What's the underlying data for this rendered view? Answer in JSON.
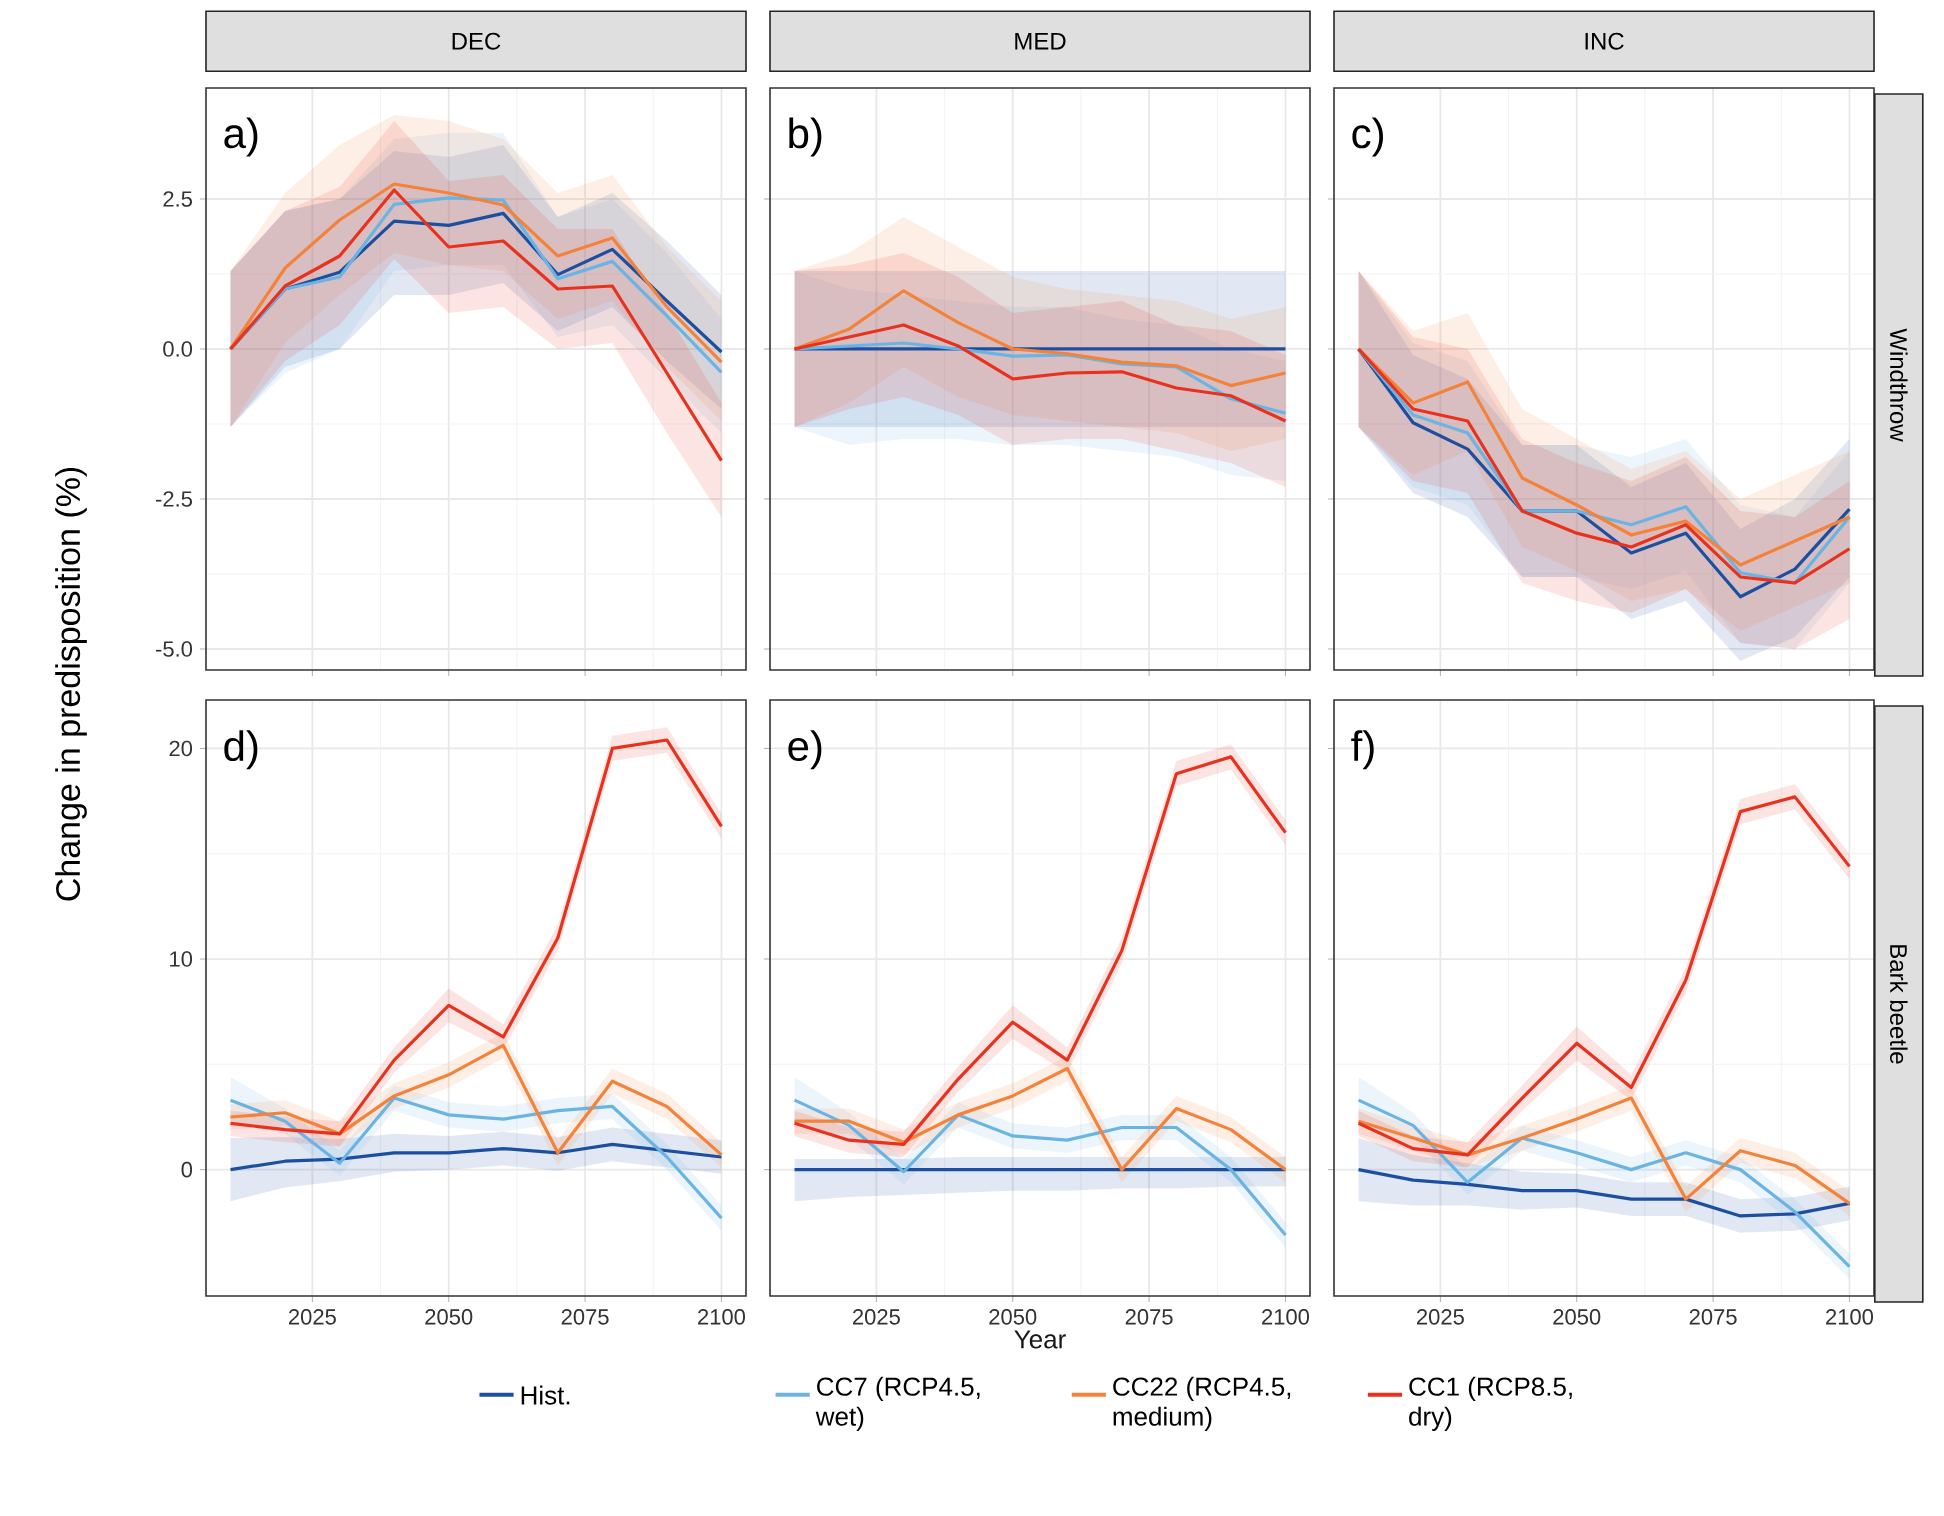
{
  "chart_data": [
    {
      "type": "line",
      "title": "DEC",
      "ylabel": "Change in predisposition (%)",
      "annotations": [
        "a)"
      ],
      "x": [
        2010,
        2020,
        2030,
        2040,
        2050,
        2060,
        2070,
        2080,
        2090,
        2100
      ],
      "xlim": [
        2005.5,
        2104.5
      ],
      "xticks": [
        2025,
        2050,
        2075,
        2100
      ],
      "ylim": [
        -5.35,
        4.35
      ],
      "yticks": [
        {
          "value": -5,
          "label": "-5.0"
        },
        {
          "value": -2.5,
          "label": "-2.5"
        },
        {
          "value": 0,
          "label": "0.0"
        },
        {
          "value": 2.5,
          "label": "2.5"
        }
      ],
      "tick_labels": "y",
      "grid": true,
      "legend": "bottom",
      "series": [
        {
          "name": "Hist.",
          "color": "#1c4fa0",
          "values": [
            0,
            1.0,
            1.28,
            2.13,
            2.06,
            2.26,
            1.24,
            1.66,
            0.8,
            -0.05
          ],
          "lower": [
            -1.3,
            -0.3,
            0.0,
            0.9,
            0.9,
            1.1,
            0.3,
            0.7,
            -0.2,
            -1.0
          ],
          "upper": [
            1.3,
            2.3,
            2.5,
            3.3,
            3.2,
            3.4,
            2.2,
            2.6,
            1.8,
            0.9
          ]
        },
        {
          "name": "CC7 (RCP4.5, wet)",
          "color": "#6ab4e4",
          "values": [
            0,
            1.0,
            1.2,
            2.41,
            2.52,
            2.48,
            1.17,
            1.46,
            0.55,
            -0.39
          ],
          "lower": [
            -1.3,
            -0.4,
            0.0,
            1.3,
            1.4,
            1.4,
            0.2,
            0.4,
            -0.5,
            -1.4
          ],
          "upper": [
            1.3,
            2.3,
            2.5,
            3.5,
            3.6,
            3.6,
            2.2,
            2.5,
            1.6,
            0.5
          ]
        },
        {
          "name": "CC22 (RCP4.5, medium)",
          "color": "#f4823a",
          "values": [
            0,
            1.35,
            2.15,
            2.75,
            2.6,
            2.4,
            1.55,
            1.85,
            0.7,
            -0.22
          ],
          "lower": [
            -1.3,
            0.1,
            0.9,
            1.6,
            1.4,
            1.3,
            0.5,
            0.8,
            -0.3,
            -1.2
          ],
          "upper": [
            1.3,
            2.6,
            3.4,
            3.9,
            3.8,
            3.5,
            2.6,
            2.9,
            1.7,
            0.8
          ]
        },
        {
          "name": "CC1 (RCP8.5, dry)",
          "color": "#e8321e",
          "values": [
            0,
            1.05,
            1.55,
            2.65,
            1.7,
            1.8,
            1.0,
            1.05,
            -0.4,
            -1.86
          ],
          "lower": [
            -1.3,
            -0.2,
            0.4,
            1.5,
            0.6,
            0.7,
            0.0,
            0.1,
            -1.4,
            -2.8
          ],
          "upper": [
            1.3,
            2.3,
            2.7,
            3.8,
            2.8,
            2.9,
            2.0,
            2.0,
            0.6,
            -0.9
          ]
        }
      ]
    },
    {
      "type": "line",
      "title": "MED",
      "annotations": [
        "b)"
      ],
      "x": [
        2010,
        2020,
        2030,
        2040,
        2050,
        2060,
        2070,
        2080,
        2090,
        2100
      ],
      "xlim": [
        2005.5,
        2104.5
      ],
      "xticks": [
        2025,
        2050,
        2075,
        2100
      ],
      "ylim": [
        -5.35,
        4.35
      ],
      "yticks": [
        -5,
        -2.5,
        0,
        2.5
      ],
      "tick_labels": false,
      "grid": true,
      "series": [
        {
          "color": "#1c4fa0",
          "values": [
            0,
            0,
            0,
            0,
            0,
            0,
            0,
            0,
            0,
            0
          ],
          "lower": [
            -1.3,
            -1.3,
            -1.3,
            -1.3,
            -1.3,
            -1.3,
            -1.3,
            -1.3,
            -1.3,
            -1.3
          ],
          "upper": [
            1.3,
            1.3,
            1.3,
            1.3,
            1.3,
            1.3,
            1.3,
            1.3,
            1.3,
            1.3
          ]
        },
        {
          "color": "#6ab4e4",
          "values": [
            0,
            0.05,
            0.1,
            0.0,
            -0.12,
            -0.1,
            -0.25,
            -0.3,
            -0.83,
            -1.07
          ],
          "lower": [
            -1.3,
            -1.6,
            -1.5,
            -1.5,
            -1.6,
            -1.6,
            -1.7,
            -1.8,
            -2.1,
            -2.2
          ],
          "upper": [
            1.3,
            1.0,
            0.9,
            0.8,
            0.7,
            0.7,
            0.5,
            0.4,
            0.0,
            -0.2
          ]
        },
        {
          "color": "#f4823a",
          "values": [
            0,
            0.33,
            0.97,
            0.44,
            0,
            -0.08,
            -0.22,
            -0.28,
            -0.61,
            -0.4
          ],
          "lower": [
            -1.3,
            -0.9,
            -0.3,
            -0.8,
            -1.1,
            -1.2,
            -1.3,
            -1.4,
            -1.7,
            -1.5
          ],
          "upper": [
            1.3,
            1.6,
            2.2,
            1.7,
            1.2,
            1.0,
            0.9,
            0.8,
            0.5,
            0.7
          ]
        },
        {
          "color": "#e8321e",
          "values": [
            0,
            0.2,
            0.4,
            0.05,
            -0.5,
            -0.4,
            -0.38,
            -0.65,
            -0.78,
            -1.2
          ],
          "lower": [
            -1.3,
            -1.0,
            -0.8,
            -1.1,
            -1.6,
            -1.5,
            -1.5,
            -1.7,
            -1.9,
            -2.3
          ],
          "upper": [
            1.3,
            1.4,
            1.6,
            1.2,
            0.6,
            0.7,
            0.8,
            0.4,
            0.3,
            -0.1
          ]
        }
      ]
    },
    {
      "type": "line",
      "title": "INC",
      "y2label": "Windthrow",
      "annotations": [
        "c)"
      ],
      "x": [
        2010,
        2020,
        2030,
        2040,
        2050,
        2060,
        2070,
        2080,
        2090,
        2100
      ],
      "xlim": [
        2005.5,
        2104.5
      ],
      "xticks": [
        2025,
        2050,
        2075,
        2100
      ],
      "ylim": [
        -5.35,
        4.35
      ],
      "yticks": [
        -5,
        -2.5,
        0,
        2.5
      ],
      "tick_labels": false,
      "grid": true,
      "series": [
        {
          "color": "#1c4fa0",
          "values": [
            0,
            -1.23,
            -1.67,
            -2.7,
            -2.7,
            -3.4,
            -3.07,
            -4.13,
            -3.67,
            -2.67
          ],
          "lower": [
            -1.3,
            -2.4,
            -2.8,
            -3.8,
            -3.8,
            -4.5,
            -4.2,
            -5.2,
            -4.8,
            -3.8
          ],
          "upper": [
            1.3,
            -0.1,
            -0.5,
            -1.6,
            -1.6,
            -2.3,
            -1.9,
            -3.0,
            -2.5,
            -1.5
          ]
        },
        {
          "color": "#6ab4e4",
          "values": [
            0,
            -1.1,
            -1.4,
            -2.7,
            -2.7,
            -2.93,
            -2.63,
            -3.73,
            -3.9,
            -2.8
          ],
          "lower": [
            -1.3,
            -2.3,
            -2.6,
            -3.8,
            -3.8,
            -4.0,
            -3.7,
            -4.9,
            -5.0,
            -3.9
          ],
          "upper": [
            1.3,
            0.1,
            -0.2,
            -1.6,
            -1.6,
            -1.8,
            -1.5,
            -2.6,
            -2.8,
            -1.7
          ]
        },
        {
          "color": "#f4823a",
          "values": [
            0,
            -0.9,
            -0.55,
            -2.15,
            -2.6,
            -3.1,
            -2.87,
            -3.6,
            -3.2,
            -2.8
          ],
          "lower": [
            -1.3,
            -2.1,
            -1.7,
            -3.3,
            -3.7,
            -4.2,
            -4.0,
            -4.7,
            -4.3,
            -3.9
          ],
          "upper": [
            1.3,
            0.3,
            0.6,
            -1.0,
            -1.5,
            -2.0,
            -1.7,
            -2.5,
            -2.1,
            -1.7
          ]
        },
        {
          "color": "#e8321e",
          "values": [
            0,
            -1.0,
            -1.2,
            -2.7,
            -3.07,
            -3.3,
            -2.93,
            -3.8,
            -3.9,
            -3.33
          ],
          "lower": [
            -1.3,
            -2.2,
            -2.4,
            -3.9,
            -4.2,
            -4.4,
            -4.0,
            -4.9,
            -5.0,
            -4.5
          ],
          "upper": [
            1.3,
            0.2,
            0.0,
            -1.5,
            -1.9,
            -2.2,
            -1.8,
            -2.7,
            -2.8,
            -2.2
          ]
        }
      ]
    },
    {
      "type": "line",
      "annotations": [
        "d)"
      ],
      "x": [
        2010,
        2020,
        2030,
        2040,
        2050,
        2060,
        2070,
        2080,
        2090,
        2100
      ],
      "xlim": [
        2005.5,
        2104.5
      ],
      "xticks": [
        2025,
        2050,
        2075,
        2100
      ],
      "ylim": [
        -6,
        22.3
      ],
      "yticks": [
        0,
        10,
        20
      ],
      "grid": true,
      "series": [
        {
          "color": "#1c4fa0",
          "values": [
            0,
            0.4,
            0.5,
            0.8,
            0.8,
            1.0,
            0.8,
            1.2,
            0.9,
            0.6
          ],
          "lower": [
            -1.5,
            -0.85,
            -0.55,
            -0.1,
            0.0,
            0.2,
            -0.05,
            0.4,
            0.1,
            -0.2
          ],
          "upper": [
            1.5,
            1.55,
            1.45,
            1.7,
            1.6,
            1.8,
            1.55,
            2.0,
            1.7,
            1.4
          ]
        },
        {
          "color": "#6ab4e4",
          "values": [
            3.3,
            2.3,
            0.3,
            3.4,
            2.6,
            2.4,
            2.8,
            3.0,
            0.6,
            -2.3
          ],
          "lower": [
            2.2,
            1.7,
            -0.3,
            2.8,
            2.0,
            1.8,
            2.2,
            2.4,
            0.0,
            -2.9
          ],
          "upper": [
            4.4,
            2.9,
            0.9,
            4.0,
            3.2,
            3.0,
            3.4,
            3.6,
            1.2,
            -1.7
          ]
        },
        {
          "color": "#f4823a",
          "values": [
            2.5,
            2.7,
            1.7,
            3.5,
            4.5,
            5.9,
            0.8,
            4.2,
            3.0,
            0.7
          ],
          "lower": [
            1.9,
            2.1,
            1.1,
            2.9,
            3.9,
            5.3,
            0.2,
            3.6,
            2.4,
            0.1
          ],
          "upper": [
            3.1,
            3.3,
            2.3,
            4.1,
            5.1,
            6.5,
            1.4,
            4.8,
            3.6,
            1.3
          ]
        },
        {
          "color": "#e8321e",
          "values": [
            2.2,
            1.9,
            1.7,
            5.2,
            7.8,
            6.3,
            11.0,
            20.0,
            20.4,
            16.3
          ],
          "lower": [
            1.6,
            1.3,
            1.1,
            4.6,
            7.0,
            5.7,
            10.4,
            19.4,
            19.8,
            15.7
          ],
          "upper": [
            2.8,
            2.5,
            2.3,
            5.8,
            8.6,
            6.9,
            11.6,
            20.6,
            21.0,
            16.9
          ]
        }
      ]
    },
    {
      "type": "line",
      "xlabel": "Year",
      "annotations": [
        "e)"
      ],
      "x": [
        2010,
        2020,
        2030,
        2040,
        2050,
        2060,
        2070,
        2080,
        2090,
        2100
      ],
      "xlim": [
        2005.5,
        2104.5
      ],
      "xticks": [
        2025,
        2050,
        2075,
        2100
      ],
      "ylim": [
        -6,
        22.3
      ],
      "yticks": [
        0,
        10,
        20
      ],
      "tick_labels": "x",
      "grid": true,
      "series": [
        {
          "color": "#1c4fa0",
          "values": [
            0,
            0,
            0,
            0,
            0,
            0,
            0,
            0,
            0,
            0
          ],
          "lower": [
            -1.5,
            -1.3,
            -1.2,
            -1.1,
            -1.0,
            -1.0,
            -0.9,
            -0.9,
            -0.8,
            -0.8
          ],
          "upper": [
            0.5,
            0.5,
            0.5,
            0.6,
            0.6,
            0.6,
            0.6,
            0.6,
            0.6,
            0.6
          ]
        },
        {
          "color": "#6ab4e4",
          "values": [
            3.3,
            2.1,
            -0.1,
            2.6,
            1.6,
            1.4,
            2.0,
            2.0,
            0.0,
            -3.1
          ],
          "lower": [
            2.2,
            1.5,
            -0.7,
            2.0,
            1.0,
            0.8,
            1.4,
            1.4,
            -0.6,
            -3.7
          ],
          "upper": [
            4.4,
            2.7,
            0.5,
            3.2,
            2.2,
            2.0,
            2.6,
            2.6,
            0.6,
            -2.5
          ]
        },
        {
          "color": "#f4823a",
          "values": [
            2.3,
            2.3,
            1.3,
            2.6,
            3.5,
            4.8,
            0.0,
            2.9,
            1.9,
            0.0
          ],
          "lower": [
            1.7,
            1.7,
            0.7,
            2.0,
            2.9,
            4.2,
            -0.6,
            2.3,
            1.3,
            -0.6
          ],
          "upper": [
            2.9,
            2.9,
            1.9,
            3.2,
            4.1,
            5.4,
            0.6,
            3.5,
            2.5,
            0.6
          ]
        },
        {
          "color": "#e8321e",
          "values": [
            2.2,
            1.4,
            1.2,
            4.3,
            7.0,
            5.2,
            10.4,
            18.8,
            19.6,
            16.0
          ],
          "lower": [
            1.6,
            0.8,
            0.6,
            3.7,
            6.2,
            4.6,
            9.8,
            18.2,
            19.0,
            15.4
          ],
          "upper": [
            2.8,
            2.0,
            1.8,
            4.9,
            7.8,
            5.8,
            11.0,
            19.4,
            20.2,
            16.6
          ]
        }
      ]
    },
    {
      "type": "line",
      "y2label": "Bark beetle",
      "annotations": [
        "f)"
      ],
      "x": [
        2010,
        2020,
        2030,
        2040,
        2050,
        2060,
        2070,
        2080,
        2090,
        2100
      ],
      "xlim": [
        2005.5,
        2104.5
      ],
      "xticks": [
        2025,
        2050,
        2075,
        2100
      ],
      "ylim": [
        -6,
        22.3
      ],
      "yticks": [
        0,
        10,
        20
      ],
      "tick_labels": "x",
      "grid": true,
      "series": [
        {
          "color": "#1c4fa0",
          "values": [
            0,
            -0.5,
            -0.7,
            -1.0,
            -1.0,
            -1.4,
            -1.4,
            -2.2,
            -2.1,
            -1.6
          ],
          "lower": [
            -1.5,
            -1.7,
            -1.7,
            -1.9,
            -1.8,
            -2.2,
            -2.2,
            -3.0,
            -2.9,
            -2.4
          ],
          "upper": [
            1.5,
            0.7,
            0.3,
            -0.1,
            -0.2,
            -0.6,
            -0.6,
            -1.4,
            -1.3,
            -0.8
          ]
        },
        {
          "color": "#6ab4e4",
          "values": [
            3.3,
            2.1,
            -0.6,
            1.5,
            0.8,
            0.0,
            0.8,
            0.0,
            -2.0,
            -4.6
          ],
          "lower": [
            2.2,
            1.5,
            -1.2,
            0.9,
            0.2,
            -0.6,
            0.2,
            -0.6,
            -2.6,
            -5.2
          ],
          "upper": [
            4.4,
            2.7,
            0.0,
            2.1,
            1.4,
            0.6,
            1.4,
            0.6,
            -1.4,
            -4.0
          ]
        },
        {
          "color": "#f4823a",
          "values": [
            2.3,
            1.5,
            0.7,
            1.5,
            2.4,
            3.4,
            -1.4,
            0.9,
            0.2,
            -1.6
          ],
          "lower": [
            1.7,
            0.9,
            0.1,
            0.9,
            1.8,
            2.8,
            -2.0,
            0.3,
            -0.4,
            -2.2
          ],
          "upper": [
            2.9,
            2.1,
            1.3,
            2.1,
            3.0,
            4.0,
            -0.8,
            1.5,
            0.8,
            -1.0
          ]
        },
        {
          "color": "#e8321e",
          "values": [
            2.2,
            1.0,
            0.7,
            3.4,
            6.0,
            3.9,
            9.0,
            17.0,
            17.7,
            14.4
          ],
          "lower": [
            1.6,
            0.4,
            0.1,
            2.8,
            5.2,
            3.3,
            8.4,
            16.4,
            17.1,
            13.8
          ],
          "upper": [
            2.8,
            1.6,
            1.3,
            4.0,
            6.8,
            4.5,
            9.6,
            17.6,
            18.3,
            15.0
          ]
        }
      ]
    }
  ]
}
